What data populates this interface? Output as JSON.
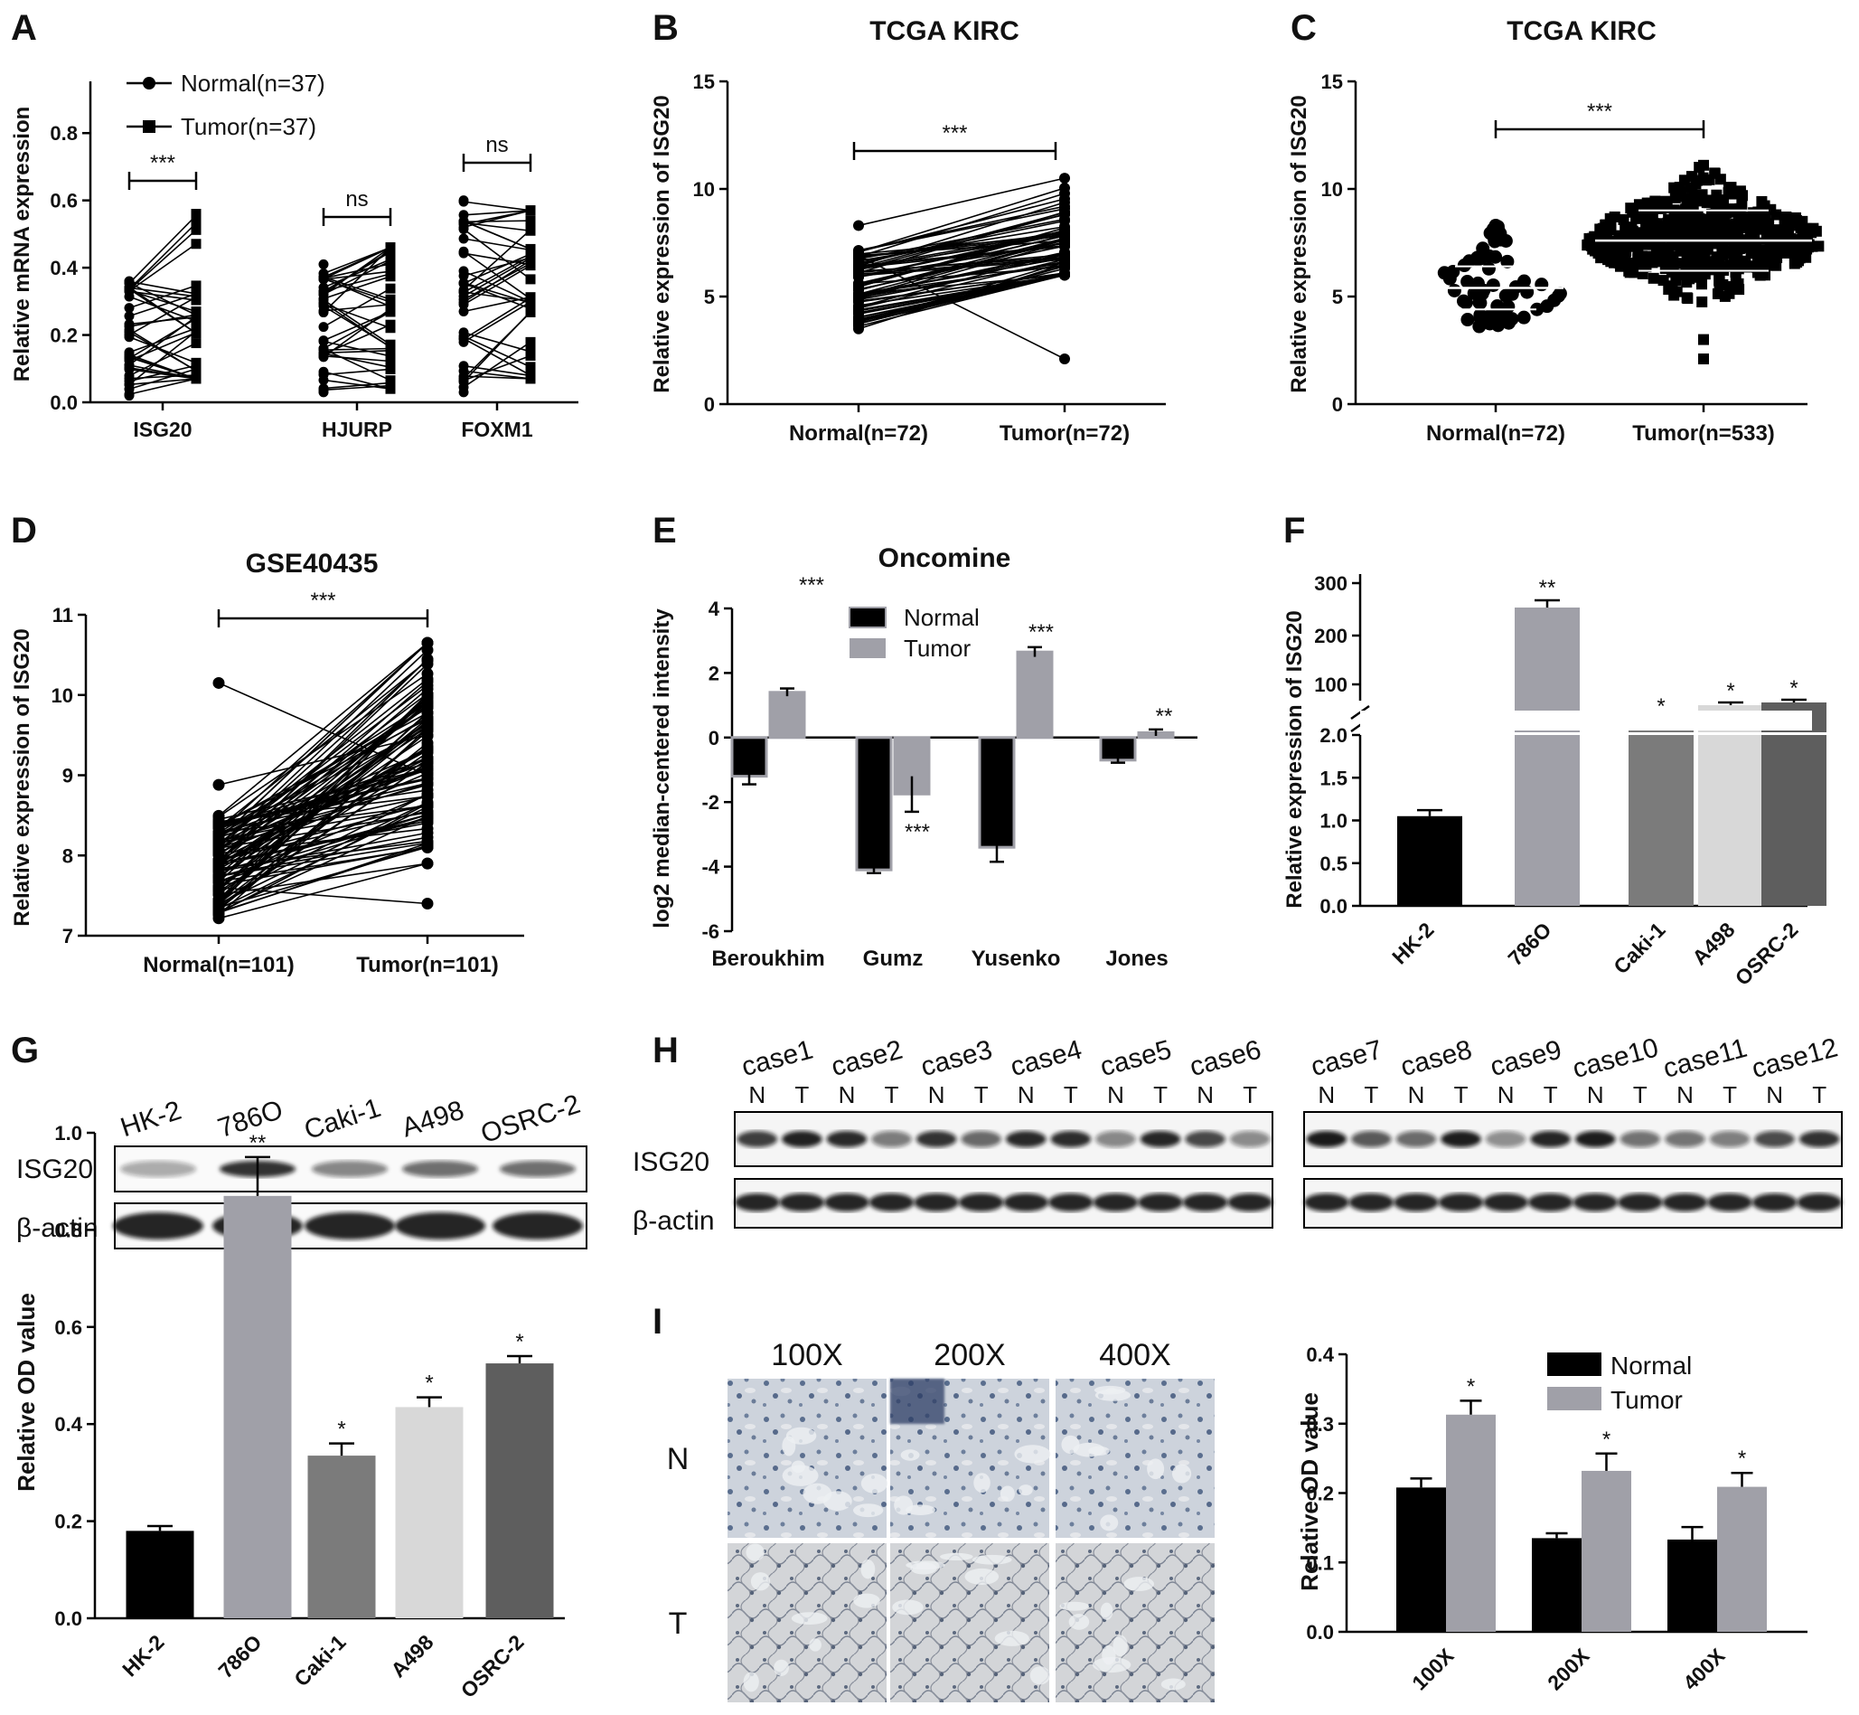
{
  "panels": [
    {
      "letter": "A"
    },
    {
      "letter": "B"
    },
    {
      "letter": "C"
    },
    {
      "letter": "D"
    },
    {
      "letter": "E"
    },
    {
      "letter": "F"
    },
    {
      "letter": "G"
    },
    {
      "letter": "H"
    },
    {
      "letter": "I"
    }
  ],
  "chart_data": [
    {
      "id": "A",
      "type": "line",
      "subtype": "paired-dot",
      "title": "",
      "ylabel": "Relative mRNA expression",
      "ylim": [
        0,
        0.9
      ],
      "yticks": [
        "0.0",
        "0.2",
        "0.4",
        "0.6",
        "0.8"
      ],
      "ytick_values": [
        0,
        0.2,
        0.4,
        0.6,
        0.8
      ],
      "categories": [
        "ISG20",
        "HJURP",
        "FOXM1"
      ],
      "legend": [
        "Normal(n=37)",
        "Tumor(n=37)"
      ],
      "normal_range": [
        [
          0.02,
          0.36
        ],
        [
          0.03,
          0.41
        ],
        [
          0.03,
          0.6
        ]
      ],
      "tumor_range": [
        [
          0.07,
          0.56
        ],
        [
          0.04,
          0.46
        ],
        [
          0.07,
          0.57
        ]
      ],
      "significance": [
        "***",
        "ns",
        "ns"
      ],
      "n": 37
    },
    {
      "id": "B",
      "type": "line",
      "subtype": "paired-dot",
      "title": "TCGA KIRC",
      "ylabel": "Relative expression of ISG20",
      "ylim": [
        0,
        15
      ],
      "yticks": [
        "0",
        "5",
        "10",
        "15"
      ],
      "ytick_values": [
        0,
        5,
        10,
        15
      ],
      "categories": [
        "Normal(n=72)",
        "Tumor(n=72)"
      ],
      "normal_range": [
        3.5,
        8.3
      ],
      "tumor_range": [
        2.1,
        10.5
      ],
      "significance": "***",
      "n": 72
    },
    {
      "id": "C",
      "type": "scatter",
      "subtype": "dot-plot",
      "title": "TCGA KIRC",
      "ylabel": "Relative expression of ISG20",
      "ylim": [
        0,
        15
      ],
      "yticks": [
        "0",
        "5",
        "10",
        "15"
      ],
      "ytick_values": [
        0,
        5,
        10,
        15
      ],
      "categories": [
        "Normal(n=72)",
        "Tumor(n=533)"
      ],
      "means": [
        5.4,
        7.6
      ],
      "sd": [
        1.0,
        1.4
      ],
      "normal_range": [
        3.6,
        8.3
      ],
      "tumor_range": [
        2.1,
        11.1
      ],
      "significance": "***"
    },
    {
      "id": "D",
      "type": "line",
      "subtype": "paired-dot",
      "title": "GSE40435",
      "ylabel": "Relative expression of ISG20",
      "ylim": [
        7,
        11
      ],
      "yticks": [
        "7",
        "8",
        "9",
        "10",
        "11"
      ],
      "ytick_values": [
        7,
        8,
        9,
        10,
        11
      ],
      "categories": [
        "Normal(n=101)",
        "Tumor(n=101)"
      ],
      "normal_range": [
        7.2,
        10.15
      ],
      "tumor_range": [
        7.4,
        10.65
      ],
      "significance": "***",
      "n": 101
    },
    {
      "id": "E",
      "type": "bar",
      "title": "Oncomine",
      "ylabel": "log2 median-centered intensity",
      "ylim": [
        -6,
        4
      ],
      "yticks": [
        "-6",
        "-4",
        "-2",
        "0",
        "2",
        "4"
      ],
      "ytick_values": [
        -6,
        -4,
        -2,
        0,
        2,
        4
      ],
      "categories": [
        "Beroukhim",
        "Gumz",
        "Yusenko",
        "Jones"
      ],
      "series": [
        {
          "name": "Normal",
          "color": "#000000",
          "values": [
            -1.2,
            -4.1,
            -3.4,
            -0.7
          ],
          "errors": [
            0.25,
            0.1,
            0.45,
            0.08
          ]
        },
        {
          "name": "Tumor",
          "color": "#a0a0a8",
          "values": [
            1.4,
            -1.75,
            2.65,
            0.15
          ],
          "errors": [
            0.12,
            0.55,
            0.15,
            0.1
          ]
        }
      ],
      "significance": [
        "***",
        "***",
        "***",
        "**"
      ]
    },
    {
      "id": "F",
      "type": "bar",
      "subtype": "broken-axis",
      "ylabel": "Relative expression of ISG20",
      "lower_yticks": [
        "0.0",
        "0.5",
        "1.0",
        "1.5",
        "2.0"
      ],
      "lower_ytick_values": [
        0,
        0.5,
        1,
        1.5,
        2
      ],
      "upper_yticks": [
        "100",
        "200",
        "300"
      ],
      "upper_ytick_values": [
        100,
        200,
        300
      ],
      "categories": [
        "HK-2",
        "786O",
        "Caki-1",
        "A498",
        "OSRC-2"
      ],
      "values": [
        1.05,
        255,
        30,
        58,
        62
      ],
      "errors": [
        0.07,
        10,
        2,
        3,
        4
      ],
      "colors": [
        "#000000",
        "#a0a0a8",
        "#7b7b7b",
        "#d8d8d8",
        "#5e5e5e"
      ],
      "significance": [
        "",
        "**",
        "*",
        "*",
        "*"
      ]
    },
    {
      "id": "G",
      "type": "bar",
      "ylabel": "Relative OD value",
      "ylim": [
        0,
        1
      ],
      "yticks": [
        "0.0",
        "0.2",
        "0.4",
        "0.6",
        "0.8",
        "1.0"
      ],
      "ytick_values": [
        0,
        0.2,
        0.4,
        0.6,
        0.8,
        1
      ],
      "categories": [
        "HK-2",
        "786O",
        "Caki-1",
        "A498",
        "OSRC-2"
      ],
      "values": [
        0.18,
        0.87,
        0.335,
        0.435,
        0.525
      ],
      "errors": [
        0.01,
        0.08,
        0.025,
        0.02,
        0.015
      ],
      "colors": [
        "#000000",
        "#a0a0a8",
        "#7b7b7b",
        "#d8d8d8",
        "#5e5e5e"
      ],
      "significance": [
        "",
        "**",
        "*",
        "*",
        "*"
      ]
    },
    {
      "id": "I",
      "type": "bar",
      "ylabel": "Relative OD value",
      "ylim": [
        0,
        0.4
      ],
      "yticks": [
        "0.0",
        "0.1",
        "0.2",
        "0.3",
        "0.4"
      ],
      "ytick_values": [
        0,
        0.1,
        0.2,
        0.3,
        0.4
      ],
      "categories": [
        "100X",
        "200X",
        "400X"
      ],
      "series": [
        {
          "name": "Normal",
          "color": "#000000",
          "values": [
            0.208,
            0.135,
            0.133
          ],
          "errors": [
            0.013,
            0.007,
            0.018
          ]
        },
        {
          "name": "Tumor",
          "color": "#a0a0a8",
          "values": [
            0.313,
            0.232,
            0.209
          ],
          "errors": [
            0.02,
            0.025,
            0.02
          ]
        }
      ],
      "significance": [
        "*",
        "*",
        "*"
      ]
    }
  ],
  "blot_G": {
    "lanes": [
      "HK-2",
      "786O",
      "Caki-1",
      "A498",
      "OSRC-2"
    ],
    "rows": [
      "ISG20",
      "β-actin"
    ],
    "isg20_intensity": [
      0.35,
      0.85,
      0.5,
      0.6,
      0.6
    ]
  },
  "blot_H": {
    "cases_left": [
      "case1",
      "case2",
      "case3",
      "case4",
      "case5",
      "case6"
    ],
    "cases_right": [
      "case7",
      "case8",
      "case9",
      "case10",
      "case11",
      "case12"
    ],
    "nt": [
      "N",
      "T"
    ],
    "rows": [
      "ISG20",
      "β-actin"
    ]
  },
  "ihc_I": {
    "magnifications": [
      "100X",
      "200X",
      "400X"
    ],
    "rows": [
      "N",
      "T"
    ]
  }
}
